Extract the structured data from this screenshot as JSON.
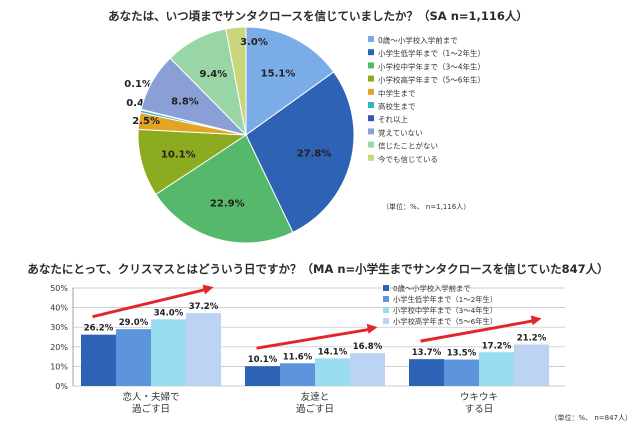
{
  "chart_data": [
    {
      "type": "pie",
      "title": "あなたは、いつ頃までサンタクロースを信じていましたか？（SA n=1,116人）",
      "note": "（単位：%、 n=1,116人）",
      "slices": [
        {
          "label": "0歳～小学校入学前まで",
          "value": 15.1,
          "value_label": "15.1%",
          "color": "#7aace8"
        },
        {
          "label": "小学生低学年まで（1～2年生）",
          "value": 27.8,
          "value_label": "27.8%",
          "color": "#2e62b4"
        },
        {
          "label": "小学校中学年まで（3～4年生）",
          "value": 22.9,
          "value_label": "22.9%",
          "color": "#55b86a"
        },
        {
          "label": "小学校高学年まで（5～6年生）",
          "value": 10.1,
          "value_label": "10.1%",
          "color": "#8cab1f"
        },
        {
          "label": "中学生まで",
          "value": 2.5,
          "value_label": "2.5%",
          "color": "#e3a325"
        },
        {
          "label": "高校生まで",
          "value": 0.4,
          "value_label": "0.4%",
          "color": "#34b3c4"
        },
        {
          "label": "それ以上",
          "value": 0.1,
          "value_label": "0.1%",
          "color": "#3a56a8"
        },
        {
          "label": "覚えていない",
          "value": 8.8,
          "value_label": "8.8%",
          "color": "#8a9fd6"
        },
        {
          "label": "信じたことがない",
          "value": 9.4,
          "value_label": "9.4%",
          "color": "#98d6a6"
        },
        {
          "label": "今でも信じている",
          "value": 3.0,
          "value_label": "3.0%",
          "color": "#cad67c"
        }
      ]
    },
    {
      "type": "bar",
      "title": "あなたにとって、クリスマスとはどういう日ですか？（MA n=小学生までサンタクロースを信じていた847人）",
      "note": "（単位：%、 n=847人）",
      "categories": [
        "恋人・夫婦で\n過ごす日",
        "友達と\n過ごす日",
        "ウキウキ\nする日"
      ],
      "series": [
        {
          "name": "0歳～小学校入学前まで",
          "values": [
            26.2,
            10.1,
            13.7
          ],
          "labels": [
            "26.2%",
            "10.1%",
            "13.7%"
          ],
          "color": "#2e62b4"
        },
        {
          "name": "小学生低学年まで（1～2年生）",
          "values": [
            29.0,
            11.6,
            13.5
          ],
          "labels": [
            "29.0%",
            "11.6%",
            "13.5%"
          ],
          "color": "#5d95dd"
        },
        {
          "name": "小学校中学年まで（3～4年生）",
          "values": [
            34.0,
            14.1,
            17.2
          ],
          "labels": [
            "34.0%",
            "14.1%",
            "17.2%"
          ],
          "color": "#9adcf0"
        },
        {
          "name": "小学校高学年まで（5～6年生）",
          "values": [
            37.2,
            16.8,
            21.2
          ],
          "labels": [
            "37.2%",
            "16.8%",
            "21.2%"
          ],
          "color": "#bcd3f3"
        }
      ],
      "ylim": [
        0,
        50
      ],
      "yticks": [
        "0%",
        "10%",
        "20%",
        "30%",
        "40%",
        "50%"
      ],
      "grid": true,
      "legend": "top-right",
      "annotations": "red upward trend arrows over each group",
      "arrow_color": "#e2262a"
    }
  ]
}
